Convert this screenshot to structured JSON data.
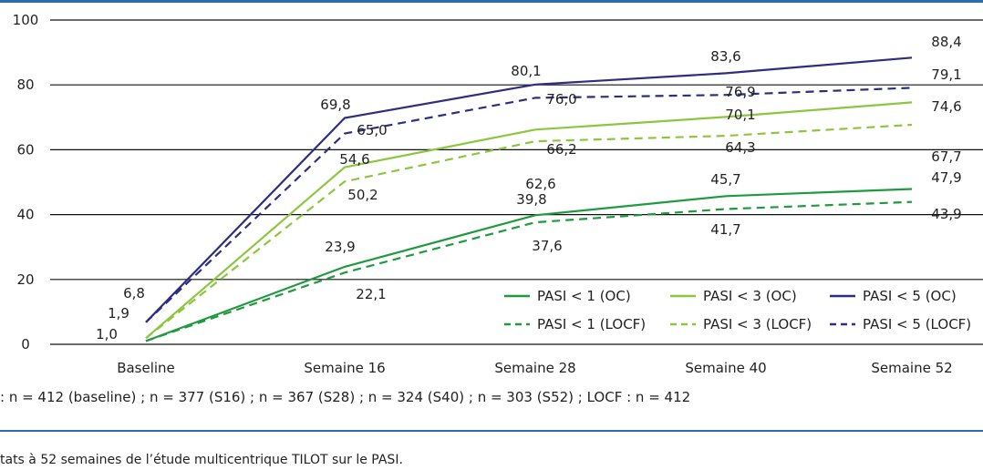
{
  "chart_data": {
    "type": "line",
    "categories": [
      "Baseline",
      "Semaine 16",
      "Semaine 28",
      "Semaine 40",
      "Semaine 52"
    ],
    "ylim": [
      0,
      100
    ],
    "yticks": [
      0,
      20,
      40,
      60,
      80,
      100
    ],
    "grid": true,
    "legend_position": "bottom-right",
    "series": [
      {
        "name": "PASI < 1 (OC)",
        "values": [
          1.0,
          23.9,
          39.8,
          45.7,
          47.9
        ],
        "color": "#1f9a3f",
        "dash": false
      },
      {
        "name": "PASI < 1 (LOCF)",
        "values": [
          1.0,
          22.1,
          37.6,
          41.7,
          43.9
        ],
        "color": "#1f9a3f",
        "dash": true
      },
      {
        "name": "PASI < 3 (OC)",
        "values": [
          1.9,
          54.6,
          66.2,
          70.1,
          74.6
        ],
        "color": "#8cc63f",
        "dash": false
      },
      {
        "name": "PASI < 3 (LOCF)",
        "values": [
          1.9,
          50.2,
          62.6,
          64.3,
          67.7
        ],
        "color": "#8cc63f",
        "dash": true
      },
      {
        "name": "PASI < 5 (OC)",
        "values": [
          6.8,
          69.8,
          80.1,
          83.6,
          88.4
        ],
        "color": "#2e2d7f",
        "dash": false
      },
      {
        "name": "PASI < 5 (LOCF)",
        "values": [
          6.8,
          65.0,
          76.0,
          76.9,
          79.1
        ],
        "color": "#2e2d7f",
        "dash": true
      }
    ],
    "data_labels": [
      "1,0",
      "1,9",
      "6,8",
      "69,8",
      "65,0",
      "54,6",
      "50,2",
      "23,9",
      "22,1",
      "80,1",
      "76,0",
      "66,2",
      "62,6",
      "39,8",
      "37,6",
      "83,6",
      "76,9",
      "70,1",
      "64,3",
      "45,7",
      "41,7",
      "88,4",
      "79,1",
      "74,6",
      "67,7",
      "47,9",
      "43,9"
    ]
  },
  "footnote": ": n = 412 (baseline) ; n = 377 (S16) ; n = 367 (S28) ; n = 324 (S40) ; n = 303 (S52) ; LOCF : n = 412",
  "caption": "tats à 52 semaines de l’étude multicentrique TILOT sur le PASI."
}
